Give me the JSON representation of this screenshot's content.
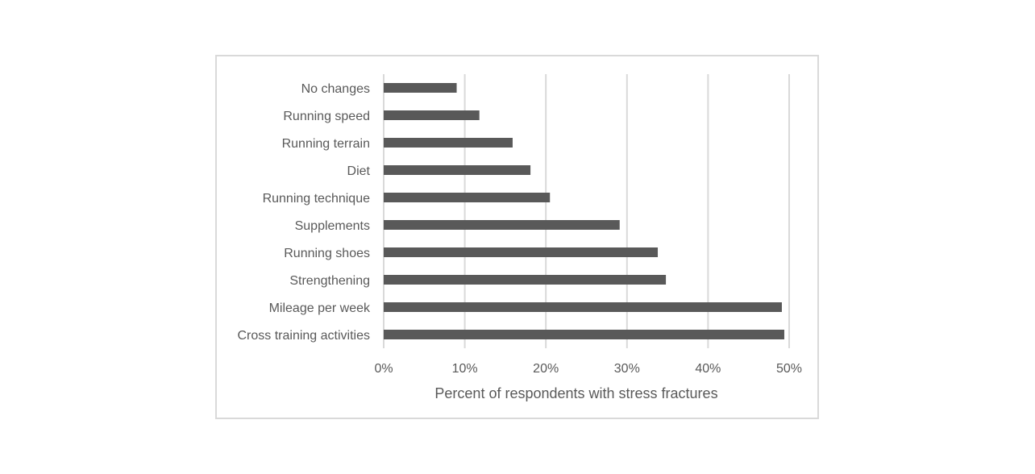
{
  "chart_data": {
    "type": "bar",
    "orientation": "horizontal",
    "categories": [
      "No changes",
      "Running speed",
      "Running terrain",
      "Diet",
      "Running technique",
      "Supplements",
      "Running shoes",
      "Strengthening",
      "Mileage per week",
      "Cross training activities"
    ],
    "values": [
      9,
      11.8,
      15.9,
      18.1,
      20.5,
      29.1,
      33.8,
      34.8,
      49.1,
      49.4
    ],
    "value_unit": "%",
    "xlim": [
      0,
      50
    ],
    "xticks": [
      "0%",
      "10%",
      "20%",
      "30%",
      "40%",
      "50%"
    ],
    "xlabel": "Percent of respondents with stress fractures",
    "ylabel": "",
    "title": "",
    "grid": "vertical",
    "legend": "none",
    "colors": {
      "bar": "#595959",
      "grid": "#d9d9d9",
      "text": "#595959",
      "border": "#d9d9d9"
    }
  }
}
